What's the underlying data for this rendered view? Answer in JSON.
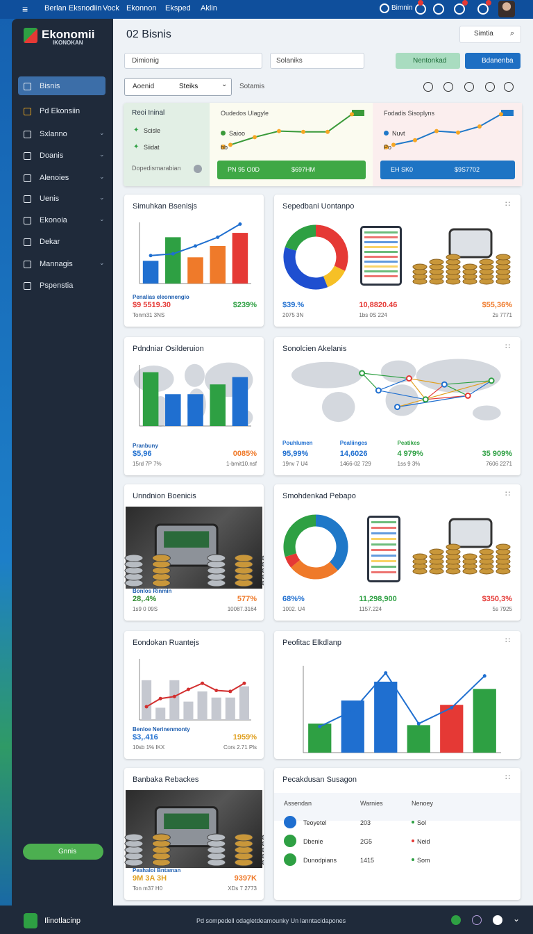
{
  "topbar": {
    "nav": [
      "Berlan Eksnodiin",
      "Vock",
      "Ekonnon",
      "Eksped",
      "Aklin"
    ],
    "user": "Bimnin"
  },
  "sidebar": {
    "brand": "Ekonomii",
    "brand_sub": "IKONOKAN",
    "items": [
      "Bisnis",
      "Pd Ekonsiin",
      "Sxlanno",
      "Doanis",
      "Alenoies",
      "Uenis",
      "Ekonoia",
      "Dekar",
      "Mannagis",
      "Pspenstia"
    ],
    "button": "Gnnis"
  },
  "header": {
    "title": "02 Bisnis",
    "search": "Simtia"
  },
  "toolbar": {
    "field1": "Dimionig",
    "field2": "Solaniks",
    "button1": "Nentonkad",
    "button2": "Bdanenba",
    "select_left": "Aoenid",
    "select": "Steiks",
    "label": "Sotamis"
  },
  "summary": {
    "panel": {
      "title": "Reoi Ininal",
      "items": [
        "Scisle",
        "Siidat"
      ],
      "footer": "Dopedismarabian"
    },
    "charts": [
      {
        "title": "Oudedos Ulagyle",
        "legend": [
          "Saioo",
          "bb"
        ],
        "ylim": [
          0,
          5
        ],
        "line": [
          0.6,
          1.6,
          2.4,
          2.3,
          2.3,
          4.6
        ],
        "color": "#3a9a3a",
        "button": [
          "PN 95 O0D",
          "$697HM"
        ],
        "button_color": "#3fa845"
      },
      {
        "title": "Fodadis Sisoplyns",
        "legend": [
          "Nuvt",
          "Po"
        ],
        "ylim": [
          0,
          5
        ],
        "line": [
          0.6,
          1.2,
          2.4,
          2.2,
          3.0,
          4.6
        ],
        "color": "#1f78c8",
        "button": [
          "EH SK0",
          "$9S7702"
        ],
        "button_color": "#1e74c4"
      }
    ]
  },
  "cards": [
    {
      "title": "Simuhkan Bsenisjs",
      "kind": "bar",
      "chart": {
        "ylim": [
          0,
          7
        ],
        "bars": [
          2.6,
          5.3,
          3.0,
          4.3,
          5.8
        ],
        "colors": [
          "#1f6fd0",
          "#2ea043",
          "#ef7a2a",
          "#ef7a2a",
          "#e53935"
        ],
        "line": [
          3.2,
          3.4,
          4.3,
          5.3,
          6.8
        ],
        "line_color": "#1f6fd0"
      },
      "caption": "Penalias eleonnengio",
      "stats": [
        {
          "value": "$9 5519.30",
          "sub": "Tonm31 3NS",
          "color": "#e53935"
        },
        {
          "value": "$239%",
          "color": "#2ea043"
        }
      ]
    },
    {
      "title": "Sepedbani Uontanpo",
      "kind": "donut",
      "chart": {
        "values": [
          32,
          12,
          36,
          20
        ],
        "colors": [
          "#e53935",
          "#f6c026",
          "#1f4fd0",
          "#2ea043"
        ]
      },
      "stats": [
        {
          "value": "$39.%",
          "sub": "2075 3N",
          "color": "#1f6fd0"
        },
        {
          "value": "10,8820.46",
          "sub": "1bs 0S 224",
          "color": "#e53935"
        },
        {
          "value": "$55,36%",
          "sub": "2s 7771",
          "color": "#ef7a2a"
        }
      ]
    },
    {
      "title": "Pdndniar Osilderuion",
      "kind": "bar",
      "map": true,
      "chart": {
        "ylim": [
          0,
          5
        ],
        "bars": [
          4.4,
          2.6,
          2.6,
          3.4,
          4.0
        ],
        "colors": [
          "#2ea043",
          "#1f6fd0",
          "#1f6fd0",
          "#2ea043",
          "#1f6fd0"
        ]
      },
      "caption": "Pranbuny",
      "stats": [
        {
          "value": "$5,96",
          "sub": "15rd 7P 7%",
          "color": "#1f6fd0"
        },
        {
          "value": "0085%",
          "sub": "1-bmit10.nsf",
          "color": "#ef7a2a"
        }
      ]
    },
    {
      "title": "Sonolcien Akelanis",
      "kind": "map",
      "stats": [
        {
          "label": "Pouhlumen",
          "value": "95,99%",
          "sub": "19nv 7 U4",
          "color": "#1f6fd0"
        },
        {
          "label": "Pealiinges",
          "value": "14,6026",
          "sub": "1466-02 729",
          "color": "#1f6fd0"
        },
        {
          "label": "Peatikes",
          "value": "4 979%",
          "sub": "1ss 9 3%",
          "color": "#2ea043"
        },
        {
          "value": "35 909%",
          "sub": "7606 2271",
          "color": "#2ea043"
        }
      ]
    },
    {
      "title": "Unndnion Boenicis",
      "kind": "image",
      "caption": "Bonlos Rinmin",
      "stats": [
        {
          "value": "28,.4%",
          "sub": "1s9 0 09S",
          "color": "#2e8b2e"
        },
        {
          "value": "577%",
          "sub": "10087.3164",
          "color": "#ef7a2a"
        }
      ]
    },
    {
      "title": "Smohdenkad Pebapo",
      "kind": "donut",
      "chart": {
        "values": [
          38,
          26,
          6,
          30
        ],
        "colors": [
          "#1f78c8",
          "#ef7a2a",
          "#e53935",
          "#2ea043"
        ]
      },
      "stats": [
        {
          "value": "68%%",
          "sub": "1002. U4",
          "color": "#1f6fd0"
        },
        {
          "value": "11,298,900",
          "sub": "1157.224",
          "color": "#2ea043"
        },
        {
          "value": "$350,3%",
          "sub": "5s 7925",
          "color": "#e53935"
        }
      ]
    },
    {
      "title": "Eondokan Ruantejs",
      "kind": "bar",
      "chart": {
        "ylim": [
          0,
          6
        ],
        "bars": [
          3.9,
          1.2,
          3.9,
          1.8,
          2.8,
          2.2,
          2.2,
          3.3
        ],
        "colors": [
          "#c5c8d0",
          "#c5c8d0",
          "#c5c8d0",
          "#c5c8d0",
          "#c5c8d0",
          "#c5c8d0",
          "#c5c8d0",
          "#c5c8d0"
        ],
        "line": [
          1.3,
          2.1,
          2.3,
          3.0,
          3.6,
          2.9,
          2.8,
          3.6
        ],
        "line_color": "#d32f2f"
      },
      "caption": "Benloe Nerinenmonty",
      "stats": [
        {
          "value": "$3,.416",
          "sub": "10sb 1% IKX",
          "color": "#1f6fd0"
        },
        {
          "value": "1959%",
          "sub": "Cors 2.71 Pls",
          "color": "#e0a020"
        }
      ]
    },
    {
      "title": "Peofitac Elkdlanp",
      "kind": "bar",
      "chart": {
        "ylim": [
          0,
          6
        ],
        "bars": [
          2.0,
          3.6,
          4.9,
          1.9,
          3.3,
          4.4
        ],
        "colors": [
          "#2ea043",
          "#1f6fd0",
          "#1f6fd0",
          "#2ea043",
          "#e53935",
          "#2ea043"
        ],
        "line": [
          1.8,
          2.9,
          5.5,
          2.0,
          3.1,
          5.3
        ],
        "line_color": "#1f6fd0"
      }
    },
    {
      "title": "Banbaka Rebackes",
      "kind": "image",
      "caption": "Peahaloi Bntaman",
      "stats": [
        {
          "value": "9M 3A 3H",
          "sub": "Ton m37 H0",
          "color": "#e0a020"
        },
        {
          "value": "9397K",
          "sub": "XDs 7 2773",
          "color": "#ef7a2a"
        }
      ]
    },
    {
      "title": "Pecakdusan Susagon",
      "kind": "table",
      "table": {
        "header": [
          "Assendan",
          "Warnies",
          "Nenoey"
        ],
        "rows": [
          [
            "Teoyetel",
            "203",
            "Sol"
          ],
          [
            "Dbenie",
            "2G5",
            "Neid"
          ],
          [
            "Dunodpians",
            "1415",
            "Som"
          ]
        ],
        "colors": [
          "#1f6fd0",
          "#2ea043",
          "#2ea043"
        ],
        "dots": [
          "#2ea043",
          "#e53935",
          "#2ea043"
        ]
      }
    }
  ],
  "footer": {
    "brand": "Ilinotlacinp",
    "text": "Pd sompedell odagletdeamounky Un lanntacidapones"
  }
}
